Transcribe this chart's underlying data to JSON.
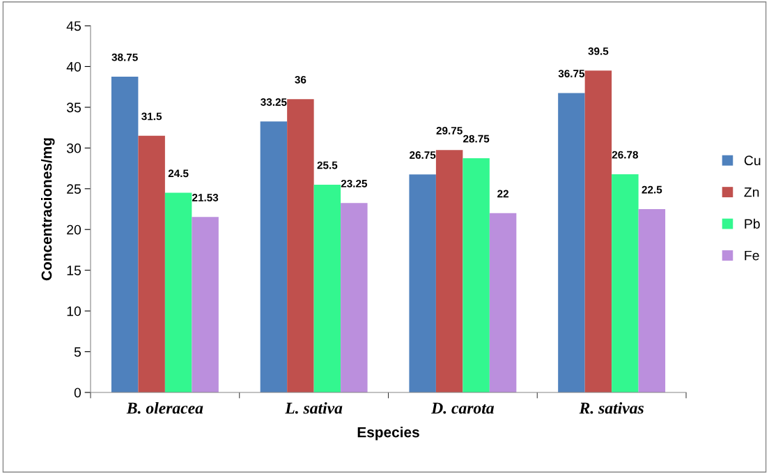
{
  "chart_data": {
    "type": "bar",
    "xlabel": "Especies",
    "ylabel": "Concentraciones/mg",
    "categories": [
      "B. oleracea",
      "L. sativa",
      "D. carota",
      "R. sativas"
    ],
    "series": [
      {
        "name": "Cu",
        "color": "#4f81bd",
        "values": [
          38.75,
          33.25,
          26.75,
          36.75
        ]
      },
      {
        "name": "Zn",
        "color": "#c0504d",
        "values": [
          31.5,
          36,
          29.75,
          39.5
        ]
      },
      {
        "name": "Pb",
        "color": "#33f78f",
        "values": [
          24.5,
          25.5,
          28.75,
          26.78
        ]
      },
      {
        "name": "Fe",
        "color": "#bb8fdd",
        "values": [
          21.53,
          23.25,
          22,
          22.5
        ]
      }
    ],
    "ylim": [
      0,
      45
    ],
    "yticks": [
      0,
      5,
      10,
      15,
      20,
      25,
      30,
      35,
      40,
      45
    ],
    "data_labels": true,
    "legend": "right",
    "grid": false
  }
}
